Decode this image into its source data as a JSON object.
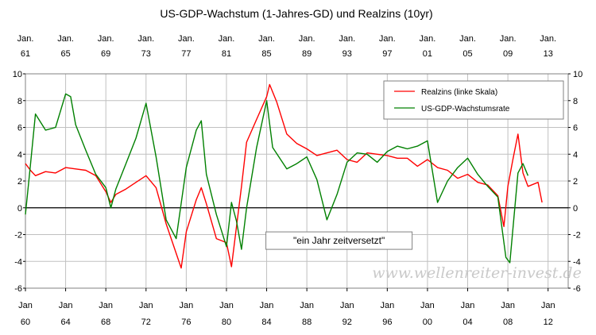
{
  "chart_data": {
    "type": "line",
    "title": "US-GDP-Wachstum (1-Jahres-GD) und Realzins (10yr)",
    "y_left_ticks": [
      "10",
      "8",
      "6",
      "4",
      "2",
      "0",
      "-2",
      "-4",
      "-6"
    ],
    "y_right_ticks": [
      "10",
      "8",
      "6",
      "4",
      "2",
      "0",
      "-2",
      "-4",
      "-6"
    ],
    "ylim": [
      -6,
      10
    ],
    "xlim": [
      1960,
      2014
    ],
    "grid": true,
    "legend_position": "top-right",
    "bottom_axis": {
      "labels": [
        {
          "top": "Jan",
          "bottom": "60",
          "year": 1960
        },
        {
          "top": "Jan",
          "bottom": "64",
          "year": 1964
        },
        {
          "top": "Jan",
          "bottom": "68",
          "year": 1968
        },
        {
          "top": "Jan",
          "bottom": "72",
          "year": 1972
        },
        {
          "top": "Jan",
          "bottom": "76",
          "year": 1976
        },
        {
          "top": "Jan",
          "bottom": "80",
          "year": 1980
        },
        {
          "top": "Jan",
          "bottom": "84",
          "year": 1984
        },
        {
          "top": "Jan",
          "bottom": "88",
          "year": 1988
        },
        {
          "top": "Jan",
          "bottom": "92",
          "year": 1992
        },
        {
          "top": "Jan",
          "bottom": "96",
          "year": 1996
        },
        {
          "top": "Jan",
          "bottom": "00",
          "year": 2000
        },
        {
          "top": "Jan",
          "bottom": "04",
          "year": 2004
        },
        {
          "top": "Jan",
          "bottom": "08",
          "year": 2008
        },
        {
          "top": "Jan",
          "bottom": "12",
          "year": 2012
        }
      ]
    },
    "top_axis": {
      "labels": [
        {
          "top": "Jan.",
          "bottom": "61",
          "year": 1960
        },
        {
          "top": "Jan.",
          "bottom": "65",
          "year": 1964
        },
        {
          "top": "Jan.",
          "bottom": "69",
          "year": 1968
        },
        {
          "top": "Jan.",
          "bottom": "73",
          "year": 1972
        },
        {
          "top": "Jan.",
          "bottom": "77",
          "year": 1976
        },
        {
          "top": "Jan.",
          "bottom": "81",
          "year": 1980
        },
        {
          "top": "Jan.",
          "bottom": "85",
          "year": 1984
        },
        {
          "top": "Jan.",
          "bottom": "89",
          "year": 1988
        },
        {
          "top": "Jan.",
          "bottom": "93",
          "year": 1992
        },
        {
          "top": "Jan.",
          "bottom": "97",
          "year": 1996
        },
        {
          "top": "Jan.",
          "bottom": "01",
          "year": 2000
        },
        {
          "top": "Jan.",
          "bottom": "05",
          "year": 2004
        },
        {
          "top": "Jan.",
          "bottom": "09",
          "year": 2008
        },
        {
          "top": "Jan.",
          "bottom": "13",
          "year": 2012
        }
      ]
    },
    "series": [
      {
        "name": "Realzins (linke Skala)",
        "color": "#ff0000",
        "points": [
          [
            1960.0,
            3.3
          ],
          [
            1960.5,
            2.8
          ],
          [
            1961,
            2.4
          ],
          [
            1962,
            2.7
          ],
          [
            1963,
            2.6
          ],
          [
            1964,
            3.0
          ],
          [
            1965,
            2.9
          ],
          [
            1966,
            2.8
          ],
          [
            1967,
            2.4
          ],
          [
            1968,
            1.2
          ],
          [
            1968.5,
            0.4
          ],
          [
            1969,
            1.0
          ],
          [
            1970,
            1.4
          ],
          [
            1971,
            1.9
          ],
          [
            1972,
            2.4
          ],
          [
            1973,
            1.5
          ],
          [
            1974,
            -1.2
          ],
          [
            1975,
            -3.4
          ],
          [
            1975.5,
            -4.5
          ],
          [
            1976,
            -1.8
          ],
          [
            1977,
            0.6
          ],
          [
            1977.5,
            1.5
          ],
          [
            1978,
            0.3
          ],
          [
            1979,
            -2.3
          ],
          [
            1980,
            -2.6
          ],
          [
            1980.5,
            -4.4
          ],
          [
            1981,
            -1.4
          ],
          [
            1981.5,
            1.6
          ],
          [
            1982,
            4.9
          ],
          [
            1983,
            6.6
          ],
          [
            1984,
            8.3
          ],
          [
            1984.3,
            9.2
          ],
          [
            1985,
            7.9
          ],
          [
            1986,
            5.5
          ],
          [
            1987,
            4.8
          ],
          [
            1988,
            4.4
          ],
          [
            1989,
            3.9
          ],
          [
            1990,
            4.1
          ],
          [
            1991,
            4.3
          ],
          [
            1992,
            3.6
          ],
          [
            1993,
            3.4
          ],
          [
            1994,
            4.1
          ],
          [
            1995,
            4.0
          ],
          [
            1996,
            3.9
          ],
          [
            1997,
            3.7
          ],
          [
            1998,
            3.7
          ],
          [
            1999,
            3.1
          ],
          [
            2000,
            3.6
          ],
          [
            2001,
            3.0
          ],
          [
            2002,
            2.8
          ],
          [
            2003,
            2.2
          ],
          [
            2004,
            2.5
          ],
          [
            2005,
            1.9
          ],
          [
            2006,
            1.7
          ],
          [
            2007,
            0.9
          ],
          [
            2007.6,
            -1.4
          ],
          [
            2008,
            1.6
          ],
          [
            2008.5,
            3.6
          ],
          [
            2009,
            5.5
          ],
          [
            2009.5,
            2.6
          ],
          [
            2010,
            1.6
          ],
          [
            2011,
            1.9
          ],
          [
            2011.4,
            0.4
          ]
        ]
      },
      {
        "name": "US-GDP-Wachstumsrate",
        "color": "#008000",
        "points": [
          [
            1960.0,
            -0.5
          ],
          [
            1960.5,
            3.2
          ],
          [
            1961,
            7.0
          ],
          [
            1962,
            5.8
          ],
          [
            1963,
            6.0
          ],
          [
            1964,
            8.5
          ],
          [
            1964.5,
            8.3
          ],
          [
            1965,
            6.2
          ],
          [
            1966,
            4.3
          ],
          [
            1967,
            2.5
          ],
          [
            1968,
            1.5
          ],
          [
            1968.5,
            0.0
          ],
          [
            1969,
            1.4
          ],
          [
            1970,
            3.3
          ],
          [
            1971,
            5.2
          ],
          [
            1972,
            7.8
          ],
          [
            1973,
            3.8
          ],
          [
            1974,
            -0.9
          ],
          [
            1975,
            -2.3
          ],
          [
            1976,
            3.0
          ],
          [
            1977,
            5.8
          ],
          [
            1977.5,
            6.5
          ],
          [
            1978,
            2.5
          ],
          [
            1979,
            -0.5
          ],
          [
            1980,
            -2.9
          ],
          [
            1980.5,
            0.4
          ],
          [
            1981,
            -1.0
          ],
          [
            1981.5,
            -3.1
          ],
          [
            1982,
            0.0
          ],
          [
            1983,
            4.5
          ],
          [
            1984,
            8.0
          ],
          [
            1984.6,
            4.5
          ],
          [
            1986,
            2.9
          ],
          [
            1987,
            3.3
          ],
          [
            1988,
            3.8
          ],
          [
            1989,
            2.1
          ],
          [
            1990,
            -0.9
          ],
          [
            1991,
            1.0
          ],
          [
            1992,
            3.4
          ],
          [
            1993,
            4.1
          ],
          [
            1994,
            4.0
          ],
          [
            1995,
            3.4
          ],
          [
            1996,
            4.2
          ],
          [
            1997,
            4.6
          ],
          [
            1998,
            4.4
          ],
          [
            1999,
            4.6
          ],
          [
            2000,
            5.0
          ],
          [
            2001,
            0.4
          ],
          [
            2002,
            2.0
          ],
          [
            2003,
            3.0
          ],
          [
            2004,
            3.7
          ],
          [
            2005,
            2.5
          ],
          [
            2006,
            1.6
          ],
          [
            2007,
            0.8
          ],
          [
            2007.8,
            -3.7
          ],
          [
            2008.2,
            -4.1
          ],
          [
            2009,
            2.6
          ],
          [
            2009.5,
            3.3
          ],
          [
            2010,
            2.4
          ]
        ]
      }
    ],
    "annotations": [
      {
        "text": "\"ein Jahr zeitversetzt\"",
        "x": 1991.2,
        "y": -2.45
      }
    ],
    "watermark": "www.wellenreiter-invest.de"
  }
}
